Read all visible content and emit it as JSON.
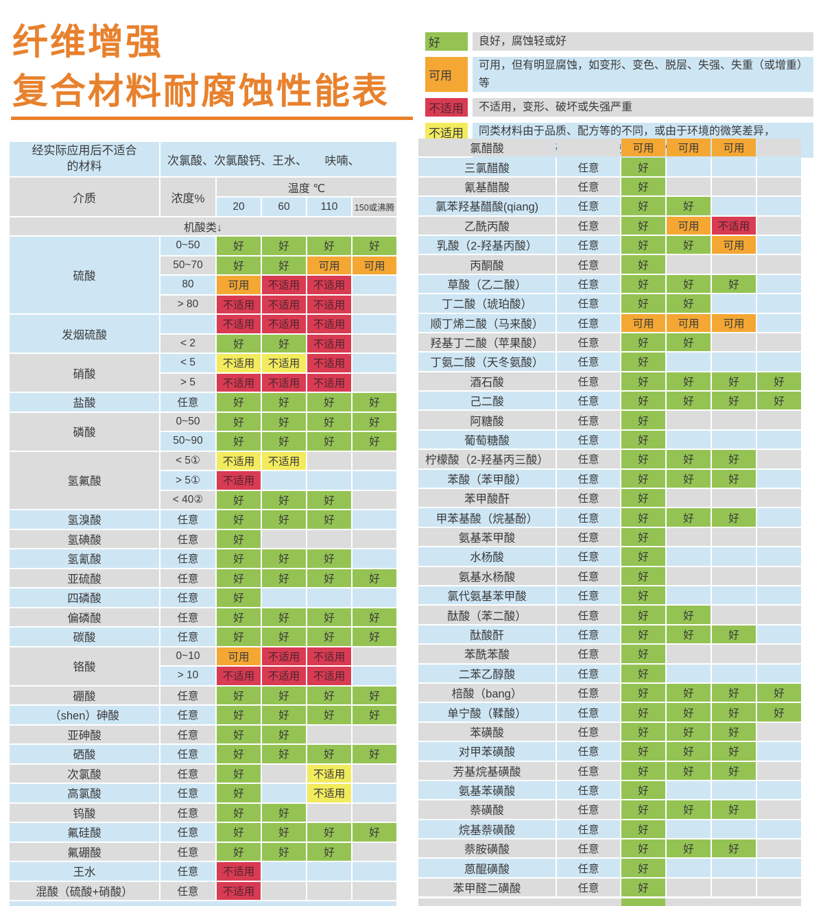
{
  "title": {
    "line1": "纤维增强",
    "line2": "复合材料耐腐蚀性能表"
  },
  "legend": {
    "items": [
      {
        "status": "good",
        "label": "好",
        "shade": "gray",
        "desc": "良好，腐蚀轻或好"
      },
      {
        "status": "usable",
        "label": "可用",
        "shade": "blue",
        "desc": "可用，但有明显腐蚀，如变形、变色、脱层、失强、失重（或增重）等"
      },
      {
        "status": "bad",
        "label": "不适用",
        "shade": "gray",
        "desc": "不适用，变形、破坏或失强严重"
      },
      {
        "status": "caution",
        "label": "不适用",
        "shade": "blue",
        "desc": "同类材料由于品质、配方等的不同，或由于环境的微笑差异，\n有些可用，有些破坏严重，使用时要谨慎"
      }
    ]
  },
  "statuses": {
    "good": "好",
    "usable": "可用",
    "bad": "不适用",
    "caution": "不适用",
    "empty": ""
  },
  "colors": {
    "good": "#94c353",
    "usable": "#f4a733",
    "bad": "#d83b52",
    "caution": "#f2eb5e",
    "blue": "#cee6f4",
    "gray": "#dcdcdc",
    "accent": "#e8812d"
  },
  "left_table": {
    "header": {
      "not_suitable_label": "经实际应用后不适合\n的材料",
      "not_suitable_value": "次氯酸、次氯酸钙、王水、　　呋喃、",
      "medium": "介质",
      "concentration": "浓度%",
      "temperature": "温度 ℃",
      "temps": [
        "20",
        "60",
        "110",
        "150或沸腾"
      ],
      "category": "机酸类↓"
    },
    "groups": [
      {
        "medium": "硫酸",
        "shade": "blue",
        "rows": [
          {
            "conc": "0~50",
            "cells": [
              "good",
              "good",
              "good",
              "good"
            ]
          },
          {
            "conc": "50~70",
            "cells": [
              "good",
              "good",
              "usable",
              "usable"
            ]
          },
          {
            "conc": "80",
            "cells": [
              "usable",
              "bad",
              "bad",
              "empty"
            ]
          },
          {
            "conc": "> 80",
            "cells": [
              "bad",
              "bad",
              "bad",
              "empty"
            ]
          }
        ]
      },
      {
        "medium": "发烟硫酸",
        "shade": "blue",
        "rows": [
          {
            "conc": "",
            "cells": [
              "bad",
              "bad",
              "bad",
              "empty"
            ]
          },
          {
            "conc": "< 2",
            "cells": [
              "good",
              "good",
              "bad",
              "empty"
            ]
          }
        ]
      },
      {
        "medium": "硝酸",
        "shade": "gray",
        "rows": [
          {
            "conc": "< 5",
            "cells": [
              "caution",
              "caution",
              "bad",
              "empty"
            ]
          },
          {
            "conc": "> 5",
            "cells": [
              "bad",
              "bad",
              "bad",
              "empty"
            ]
          }
        ]
      },
      {
        "medium": "盐酸",
        "shade": "blue",
        "rows": [
          {
            "conc": "任意",
            "cells": [
              "good",
              "good",
              "good",
              "good"
            ]
          }
        ]
      },
      {
        "medium": "磷酸",
        "shade": "gray",
        "rows": [
          {
            "conc": "0~50",
            "cells": [
              "good",
              "good",
              "good",
              "good"
            ]
          },
          {
            "conc": "50~90",
            "cells": [
              "good",
              "good",
              "good",
              "good"
            ]
          }
        ]
      },
      {
        "medium": "氢氟酸",
        "shade": "gray",
        "rows": [
          {
            "conc": "< 5①",
            "cells": [
              "caution",
              "caution",
              "empty",
              "empty"
            ]
          },
          {
            "conc": "> 5①",
            "cells": [
              "bad",
              "empty",
              "empty",
              "empty"
            ]
          },
          {
            "conc": "< 40②",
            "cells": [
              "good",
              "good",
              "good",
              "empty"
            ]
          }
        ]
      },
      {
        "medium": "氢溴酸",
        "shade": "blue",
        "rows": [
          {
            "conc": "任意",
            "cells": [
              "good",
              "good",
              "good",
              "empty"
            ]
          }
        ]
      },
      {
        "medium": "氢碘酸",
        "shade": "gray",
        "rows": [
          {
            "conc": "任意",
            "cells": [
              "good",
              "empty",
              "empty",
              "empty"
            ]
          }
        ]
      },
      {
        "medium": "氢氰酸",
        "shade": "blue",
        "rows": [
          {
            "conc": "任意",
            "cells": [
              "good",
              "good",
              "good",
              "empty"
            ]
          }
        ]
      },
      {
        "medium": "亚硫酸",
        "shade": "gray",
        "rows": [
          {
            "conc": "任意",
            "cells": [
              "good",
              "good",
              "good",
              "good"
            ]
          }
        ]
      },
      {
        "medium": "四磷酸",
        "shade": "blue",
        "rows": [
          {
            "conc": "任意",
            "cells": [
              "good",
              "empty",
              "empty",
              "empty"
            ]
          }
        ]
      },
      {
        "medium": "偏磷酸",
        "shade": "gray",
        "rows": [
          {
            "conc": "任意",
            "cells": [
              "good",
              "good",
              "good",
              "good"
            ]
          }
        ]
      },
      {
        "medium": "碳酸",
        "shade": "blue",
        "rows": [
          {
            "conc": "任意",
            "cells": [
              "good",
              "good",
              "good",
              "good"
            ]
          }
        ]
      },
      {
        "medium": "铬酸",
        "shade": "gray",
        "rows": [
          {
            "conc": "0~10",
            "cells": [
              "usable",
              "bad",
              "bad",
              "empty"
            ]
          },
          {
            "conc": "> 10",
            "cells": [
              "bad",
              "bad",
              "bad",
              "empty"
            ]
          }
        ]
      },
      {
        "medium": "硼酸",
        "shade": "gray",
        "rows": [
          {
            "conc": "任意",
            "cells": [
              "good",
              "good",
              "good",
              "good"
            ]
          }
        ]
      },
      {
        "medium": "（shen）砷酸",
        "shade": "blue",
        "rows": [
          {
            "conc": "任意",
            "cells": [
              "good",
              "good",
              "good",
              "good"
            ]
          }
        ]
      },
      {
        "medium": "亚砷酸",
        "shade": "gray",
        "rows": [
          {
            "conc": "任意",
            "cells": [
              "good",
              "good",
              "empty",
              "empty"
            ]
          }
        ]
      },
      {
        "medium": "硒酸",
        "shade": "blue",
        "rows": [
          {
            "conc": "任意",
            "cells": [
              "good",
              "good",
              "good",
              "good"
            ]
          }
        ]
      },
      {
        "medium": "次氯酸",
        "shade": "gray",
        "rows": [
          {
            "conc": "任意",
            "cells": [
              "good",
              "empty",
              "caution",
              "empty"
            ]
          }
        ]
      },
      {
        "medium": "高氯酸",
        "shade": "blue",
        "rows": [
          {
            "conc": "任意",
            "cells": [
              "good",
              "empty",
              "caution",
              "empty"
            ]
          }
        ]
      },
      {
        "medium": "钨酸",
        "shade": "gray",
        "rows": [
          {
            "conc": "任意",
            "cells": [
              "good",
              "good",
              "empty",
              "empty"
            ]
          }
        ]
      },
      {
        "medium": "氟硅酸",
        "shade": "blue",
        "rows": [
          {
            "conc": "任意",
            "cells": [
              "good",
              "good",
              "good",
              "good"
            ]
          }
        ]
      },
      {
        "medium": "氟硼酸",
        "shade": "gray",
        "rows": [
          {
            "conc": "任意",
            "cells": [
              "good",
              "good",
              "good",
              "empty"
            ]
          }
        ]
      },
      {
        "medium": "王水",
        "shade": "blue",
        "rows": [
          {
            "conc": "任意",
            "cells": [
              "bad",
              "empty",
              "empty",
              "empty"
            ]
          }
        ]
      },
      {
        "medium": "混酸（硫酸+硝酸）",
        "shade": "gray",
        "rows": [
          {
            "conc": "任意",
            "cells": [
              "bad",
              "empty",
              "empty",
              "empty"
            ]
          }
        ]
      }
    ]
  },
  "right_table": {
    "rows": [
      {
        "medium": "氯醋酸",
        "conc": "",
        "shade": "gray",
        "cells": [
          "usable",
          "usable",
          "usable",
          "empty"
        ]
      },
      {
        "medium": "三氯醋酸",
        "conc": "任意",
        "shade": "blue",
        "cells": [
          "good",
          "empty",
          "empty",
          "empty"
        ]
      },
      {
        "medium": "氰基醋酸",
        "conc": "任意",
        "shade": "gray",
        "cells": [
          "good",
          "empty",
          "empty",
          "empty"
        ]
      },
      {
        "medium": "氯苯羟基醋酸(qiang)",
        "conc": "任意",
        "shade": "blue",
        "cells": [
          "good",
          "good",
          "empty",
          "empty"
        ]
      },
      {
        "medium": "乙酰丙酸",
        "conc": "任意",
        "shade": "gray",
        "cells": [
          "good",
          "usable",
          "bad",
          "empty"
        ]
      },
      {
        "medium": "乳酸（2-羟基丙酸）",
        "conc": "任意",
        "shade": "blue",
        "cells": [
          "good",
          "good",
          "usable",
          "empty"
        ]
      },
      {
        "medium": "丙酮酸",
        "conc": "任意",
        "shade": "gray",
        "cells": [
          "good",
          "empty",
          "empty",
          "empty"
        ]
      },
      {
        "medium": "草酸（乙二酸）",
        "conc": "任意",
        "shade": "blue",
        "cells": [
          "good",
          "good",
          "good",
          "empty"
        ]
      },
      {
        "medium": "丁二酸（琥珀酸）",
        "conc": "任意",
        "shade": "blue",
        "cells": [
          "good",
          "good",
          "empty",
          "empty"
        ]
      },
      {
        "medium": "顺丁烯二酸（马来酸）",
        "conc": "任意",
        "shade": "blue",
        "cells": [
          "usable",
          "usable",
          "usable",
          "empty"
        ]
      },
      {
        "medium": "羟基丁二酸（苹果酸）",
        "conc": "任意",
        "shade": "gray",
        "cells": [
          "good",
          "good",
          "empty",
          "empty"
        ]
      },
      {
        "medium": "丁氨二酸（天冬氨酸）",
        "conc": "任意",
        "shade": "blue",
        "cells": [
          "good",
          "empty",
          "empty",
          "empty"
        ]
      },
      {
        "medium": "酒石酸",
        "conc": "任意",
        "shade": "gray",
        "cells": [
          "good",
          "good",
          "good",
          "good"
        ]
      },
      {
        "medium": "己二酸",
        "conc": "任意",
        "shade": "blue",
        "cells": [
          "good",
          "good",
          "good",
          "good"
        ]
      },
      {
        "medium": "阿糖酸",
        "conc": "任意",
        "shade": "gray",
        "cells": [
          "good",
          "empty",
          "empty",
          "empty"
        ]
      },
      {
        "medium": "葡萄糖酸",
        "conc": "任意",
        "shade": "blue",
        "cells": [
          "good",
          "empty",
          "empty",
          "empty"
        ]
      },
      {
        "medium": "柠檬酸（2-羟基丙三酸）",
        "conc": "任意",
        "shade": "gray",
        "cells": [
          "good",
          "good",
          "good",
          "empty"
        ]
      },
      {
        "medium": "苯酸（苯甲酸）",
        "conc": "任意",
        "shade": "blue",
        "cells": [
          "good",
          "good",
          "good",
          "empty"
        ]
      },
      {
        "medium": "苯甲酸酐",
        "conc": "任意",
        "shade": "gray",
        "cells": [
          "good",
          "empty",
          "empty",
          "empty"
        ]
      },
      {
        "medium": "甲苯基酸（烷基酚）",
        "conc": "任意",
        "shade": "blue",
        "cells": [
          "good",
          "good",
          "good",
          "empty"
        ]
      },
      {
        "medium": "氨基苯甲酸",
        "conc": "任意",
        "shade": "gray",
        "cells": [
          "good",
          "empty",
          "empty",
          "empty"
        ]
      },
      {
        "medium": "水杨酸",
        "conc": "任意",
        "shade": "blue",
        "cells": [
          "good",
          "empty",
          "empty",
          "empty"
        ]
      },
      {
        "medium": "氨基水杨酸",
        "conc": "任意",
        "shade": "gray",
        "cells": [
          "good",
          "empty",
          "empty",
          "empty"
        ]
      },
      {
        "medium": "氯代氨基苯甲酸",
        "conc": "任意",
        "shade": "blue",
        "cells": [
          "good",
          "empty",
          "empty",
          "empty"
        ]
      },
      {
        "medium": "酞酸（苯二酸）",
        "conc": "任意",
        "shade": "gray",
        "cells": [
          "good",
          "good",
          "empty",
          "empty"
        ]
      },
      {
        "medium": "酞酸酐",
        "conc": "任意",
        "shade": "blue",
        "cells": [
          "good",
          "good",
          "good",
          "empty"
        ]
      },
      {
        "medium": "苯酰苯酸",
        "conc": "任意",
        "shade": "gray",
        "cells": [
          "good",
          "empty",
          "empty",
          "empty"
        ]
      },
      {
        "medium": "二苯乙醇酸",
        "conc": "任意",
        "shade": "blue",
        "cells": [
          "good",
          "empty",
          "empty",
          "empty"
        ]
      },
      {
        "medium": "棓酸（bang）",
        "conc": "任意",
        "shade": "gray",
        "cells": [
          "good",
          "good",
          "good",
          "good"
        ]
      },
      {
        "medium": "单宁酸（鞣酸）",
        "conc": "任意",
        "shade": "blue",
        "cells": [
          "good",
          "good",
          "good",
          "good"
        ]
      },
      {
        "medium": "苯磺酸",
        "conc": "任意",
        "shade": "gray",
        "cells": [
          "good",
          "good",
          "good",
          "empty"
        ]
      },
      {
        "medium": "对甲苯磺酸",
        "conc": "任意",
        "shade": "blue",
        "cells": [
          "good",
          "good",
          "good",
          "empty"
        ]
      },
      {
        "medium": "芳基烷基磺酸",
        "conc": "任意",
        "shade": "gray",
        "cells": [
          "good",
          "good",
          "good",
          "empty"
        ]
      },
      {
        "medium": "氨基苯磺酸",
        "conc": "任意",
        "shade": "blue",
        "cells": [
          "good",
          "empty",
          "empty",
          "empty"
        ]
      },
      {
        "medium": "萘磺酸",
        "conc": "任意",
        "shade": "gray",
        "cells": [
          "good",
          "good",
          "good",
          "empty"
        ]
      },
      {
        "medium": "烷基萘磺酸",
        "conc": "任意",
        "shade": "blue",
        "cells": [
          "good",
          "empty",
          "empty",
          "empty"
        ]
      },
      {
        "medium": "萘胺磺酸",
        "conc": "任意",
        "shade": "gray",
        "cells": [
          "good",
          "good",
          "good",
          "empty"
        ]
      },
      {
        "medium": "蒽醌磺酸",
        "conc": "任意",
        "shade": "blue",
        "cells": [
          "good",
          "empty",
          "empty",
          "empty"
        ]
      },
      {
        "medium": "苯甲醛二磺酸",
        "conc": "任意",
        "shade": "gray",
        "cells": [
          "good",
          "empty",
          "empty",
          "empty"
        ]
      }
    ]
  }
}
